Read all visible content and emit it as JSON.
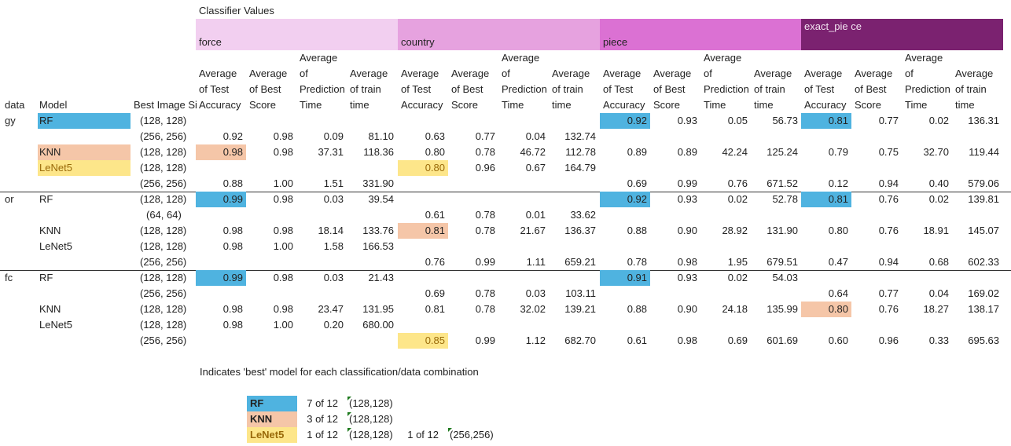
{
  "pivot": {
    "corner_label": "Classifier Values",
    "row_labels": {
      "dataset": "data",
      "model": "Model",
      "image_size": "Best Image Si"
    },
    "classifiers": [
      {
        "name": "force",
        "color": "#f2cff0"
      },
      {
        "name": "country",
        "color": "#e6a2df"
      },
      {
        "name": "piece",
        "color": "#db71d3"
      },
      {
        "name": "exact_pie ce",
        "color": "#7b2270"
      }
    ],
    "measures": [
      "Average of Test Accuracy",
      "Average of Best Score",
      "Average of Prediction Time",
      "Average of train time"
    ],
    "rows": [
      {
        "ds": "gy",
        "model": "RF",
        "size": "(128, 128)",
        "force": [
          "",
          "",
          "",
          ""
        ],
        "country": [
          "",
          "",
          "",
          ""
        ],
        "piece": [
          "0.92",
          "0.93",
          "0.05",
          "56.73"
        ],
        "exact": [
          "0.81",
          "0.77",
          "0.02",
          "136.31"
        ]
      },
      {
        "ds": "",
        "model": "",
        "size": "(256, 256)",
        "force": [
          "0.92",
          "0.98",
          "0.09",
          "81.10"
        ],
        "country": [
          "0.63",
          "0.77",
          "0.04",
          "132.74"
        ],
        "piece": [
          "",
          "",
          "",
          ""
        ],
        "exact": [
          "",
          "",
          "",
          ""
        ]
      },
      {
        "ds": "",
        "model": "KNN",
        "size": "(128, 128)",
        "force": [
          "0.98",
          "0.98",
          "37.31",
          "118.36"
        ],
        "country": [
          "0.80",
          "0.78",
          "46.72",
          "112.78"
        ],
        "piece": [
          "0.89",
          "0.89",
          "42.24",
          "125.24"
        ],
        "exact": [
          "0.79",
          "0.75",
          "32.70",
          "119.44"
        ]
      },
      {
        "ds": "",
        "model": "LeNet5",
        "size": "(128, 128)",
        "force": [
          "",
          "",
          "",
          ""
        ],
        "country": [
          "0.80",
          "0.96",
          "0.67",
          "164.79"
        ],
        "piece": [
          "",
          "",
          "",
          ""
        ],
        "exact": [
          "",
          "",
          "",
          ""
        ]
      },
      {
        "ds": "",
        "model": "",
        "size": "(256, 256)",
        "force": [
          "0.88",
          "1.00",
          "1.51",
          "331.90"
        ],
        "country": [
          "",
          "",
          "",
          ""
        ],
        "piece": [
          "0.69",
          "0.99",
          "0.76",
          "671.52"
        ],
        "exact": [
          "0.12",
          "0.94",
          "0.40",
          "579.06"
        ]
      },
      {
        "ds": "or",
        "model": "RF",
        "size": "(128, 128)",
        "force": [
          "0.99",
          "0.98",
          "0.03",
          "39.54"
        ],
        "country": [
          "",
          "",
          "",
          ""
        ],
        "piece": [
          "0.92",
          "0.93",
          "0.02",
          "52.78"
        ],
        "exact": [
          "0.81",
          "0.76",
          "0.02",
          "139.81"
        ]
      },
      {
        "ds": "",
        "model": "",
        "size": "(64, 64)",
        "force": [
          "",
          "",
          "",
          ""
        ],
        "country": [
          "0.61",
          "0.78",
          "0.01",
          "33.62"
        ],
        "piece": [
          "",
          "",
          "",
          ""
        ],
        "exact": [
          "",
          "",
          "",
          ""
        ]
      },
      {
        "ds": "",
        "model": "KNN",
        "size": "(128, 128)",
        "force": [
          "0.98",
          "0.98",
          "18.14",
          "133.76"
        ],
        "country": [
          "0.81",
          "0.78",
          "21.67",
          "136.37"
        ],
        "piece": [
          "0.88",
          "0.90",
          "28.92",
          "131.90"
        ],
        "exact": [
          "0.80",
          "0.76",
          "18.91",
          "145.07"
        ]
      },
      {
        "ds": "",
        "model": "LeNet5",
        "size": "(128, 128)",
        "force": [
          "0.98",
          "1.00",
          "1.58",
          "166.53"
        ],
        "country": [
          "",
          "",
          "",
          ""
        ],
        "piece": [
          "",
          "",
          "",
          ""
        ],
        "exact": [
          "",
          "",
          "",
          ""
        ]
      },
      {
        "ds": "",
        "model": "",
        "size": "(256, 256)",
        "force": [
          "",
          "",
          "",
          ""
        ],
        "country": [
          "0.76",
          "0.99",
          "1.11",
          "659.21"
        ],
        "piece": [
          "0.78",
          "0.98",
          "1.95",
          "679.51"
        ],
        "exact": [
          "0.47",
          "0.94",
          "0.68",
          "602.33"
        ]
      },
      {
        "ds": "fc",
        "model": "RF",
        "size": "(128, 128)",
        "force": [
          "0.99",
          "0.98",
          "0.03",
          "21.43"
        ],
        "country": [
          "",
          "",
          "",
          ""
        ],
        "piece": [
          "0.91",
          "0.93",
          "0.02",
          "54.03"
        ],
        "exact": [
          "",
          "",
          "",
          ""
        ]
      },
      {
        "ds": "",
        "model": "",
        "size": "(256, 256)",
        "force": [
          "",
          "",
          "",
          ""
        ],
        "country": [
          "0.69",
          "0.78",
          "0.03",
          "103.11"
        ],
        "piece": [
          "",
          "",
          "",
          ""
        ],
        "exact": [
          "0.64",
          "0.77",
          "0.04",
          "169.02"
        ]
      },
      {
        "ds": "",
        "model": "KNN",
        "size": "(128, 128)",
        "force": [
          "0.98",
          "0.98",
          "23.47",
          "131.95"
        ],
        "country": [
          "0.81",
          "0.78",
          "32.02",
          "139.21"
        ],
        "piece": [
          "0.88",
          "0.90",
          "24.18",
          "135.99"
        ],
        "exact": [
          "0.80",
          "0.76",
          "18.27",
          "138.17"
        ]
      },
      {
        "ds": "",
        "model": "LeNet5",
        "size": "(128, 128)",
        "force": [
          "0.98",
          "1.00",
          "0.20",
          "680.00"
        ],
        "country": [
          "",
          "",
          "",
          ""
        ],
        "piece": [
          "",
          "",
          "",
          ""
        ],
        "exact": [
          "",
          "",
          "",
          ""
        ]
      },
      {
        "ds": "",
        "model": "",
        "size": "(256, 256)",
        "force": [
          "",
          "",
          "",
          ""
        ],
        "country": [
          "0.85",
          "0.99",
          "1.12",
          "682.70"
        ],
        "piece": [
          "0.61",
          "0.98",
          "0.69",
          "601.69"
        ],
        "exact": [
          "0.60",
          "0.96",
          "0.33",
          "695.63"
        ]
      }
    ]
  },
  "legend": {
    "note": "Indicates 'best' model for each classification/data combination",
    "items": [
      {
        "label": "RF",
        "count": "7 of 12",
        "size": "(128,128)",
        "count2": "",
        "size2": ""
      },
      {
        "label": "KNN",
        "count": "3 of 12",
        "size": "(128,128)",
        "count2": "",
        "size2": ""
      },
      {
        "label": "LeNet5",
        "count": "1 of 12",
        "size": "(128,128)",
        "count2": "1 of 12",
        "size2": "(256,256)"
      }
    ]
  },
  "colors": {
    "rf": "#4fb3e0",
    "knn": "#f5c6a8",
    "lenet": "#fde68a"
  }
}
